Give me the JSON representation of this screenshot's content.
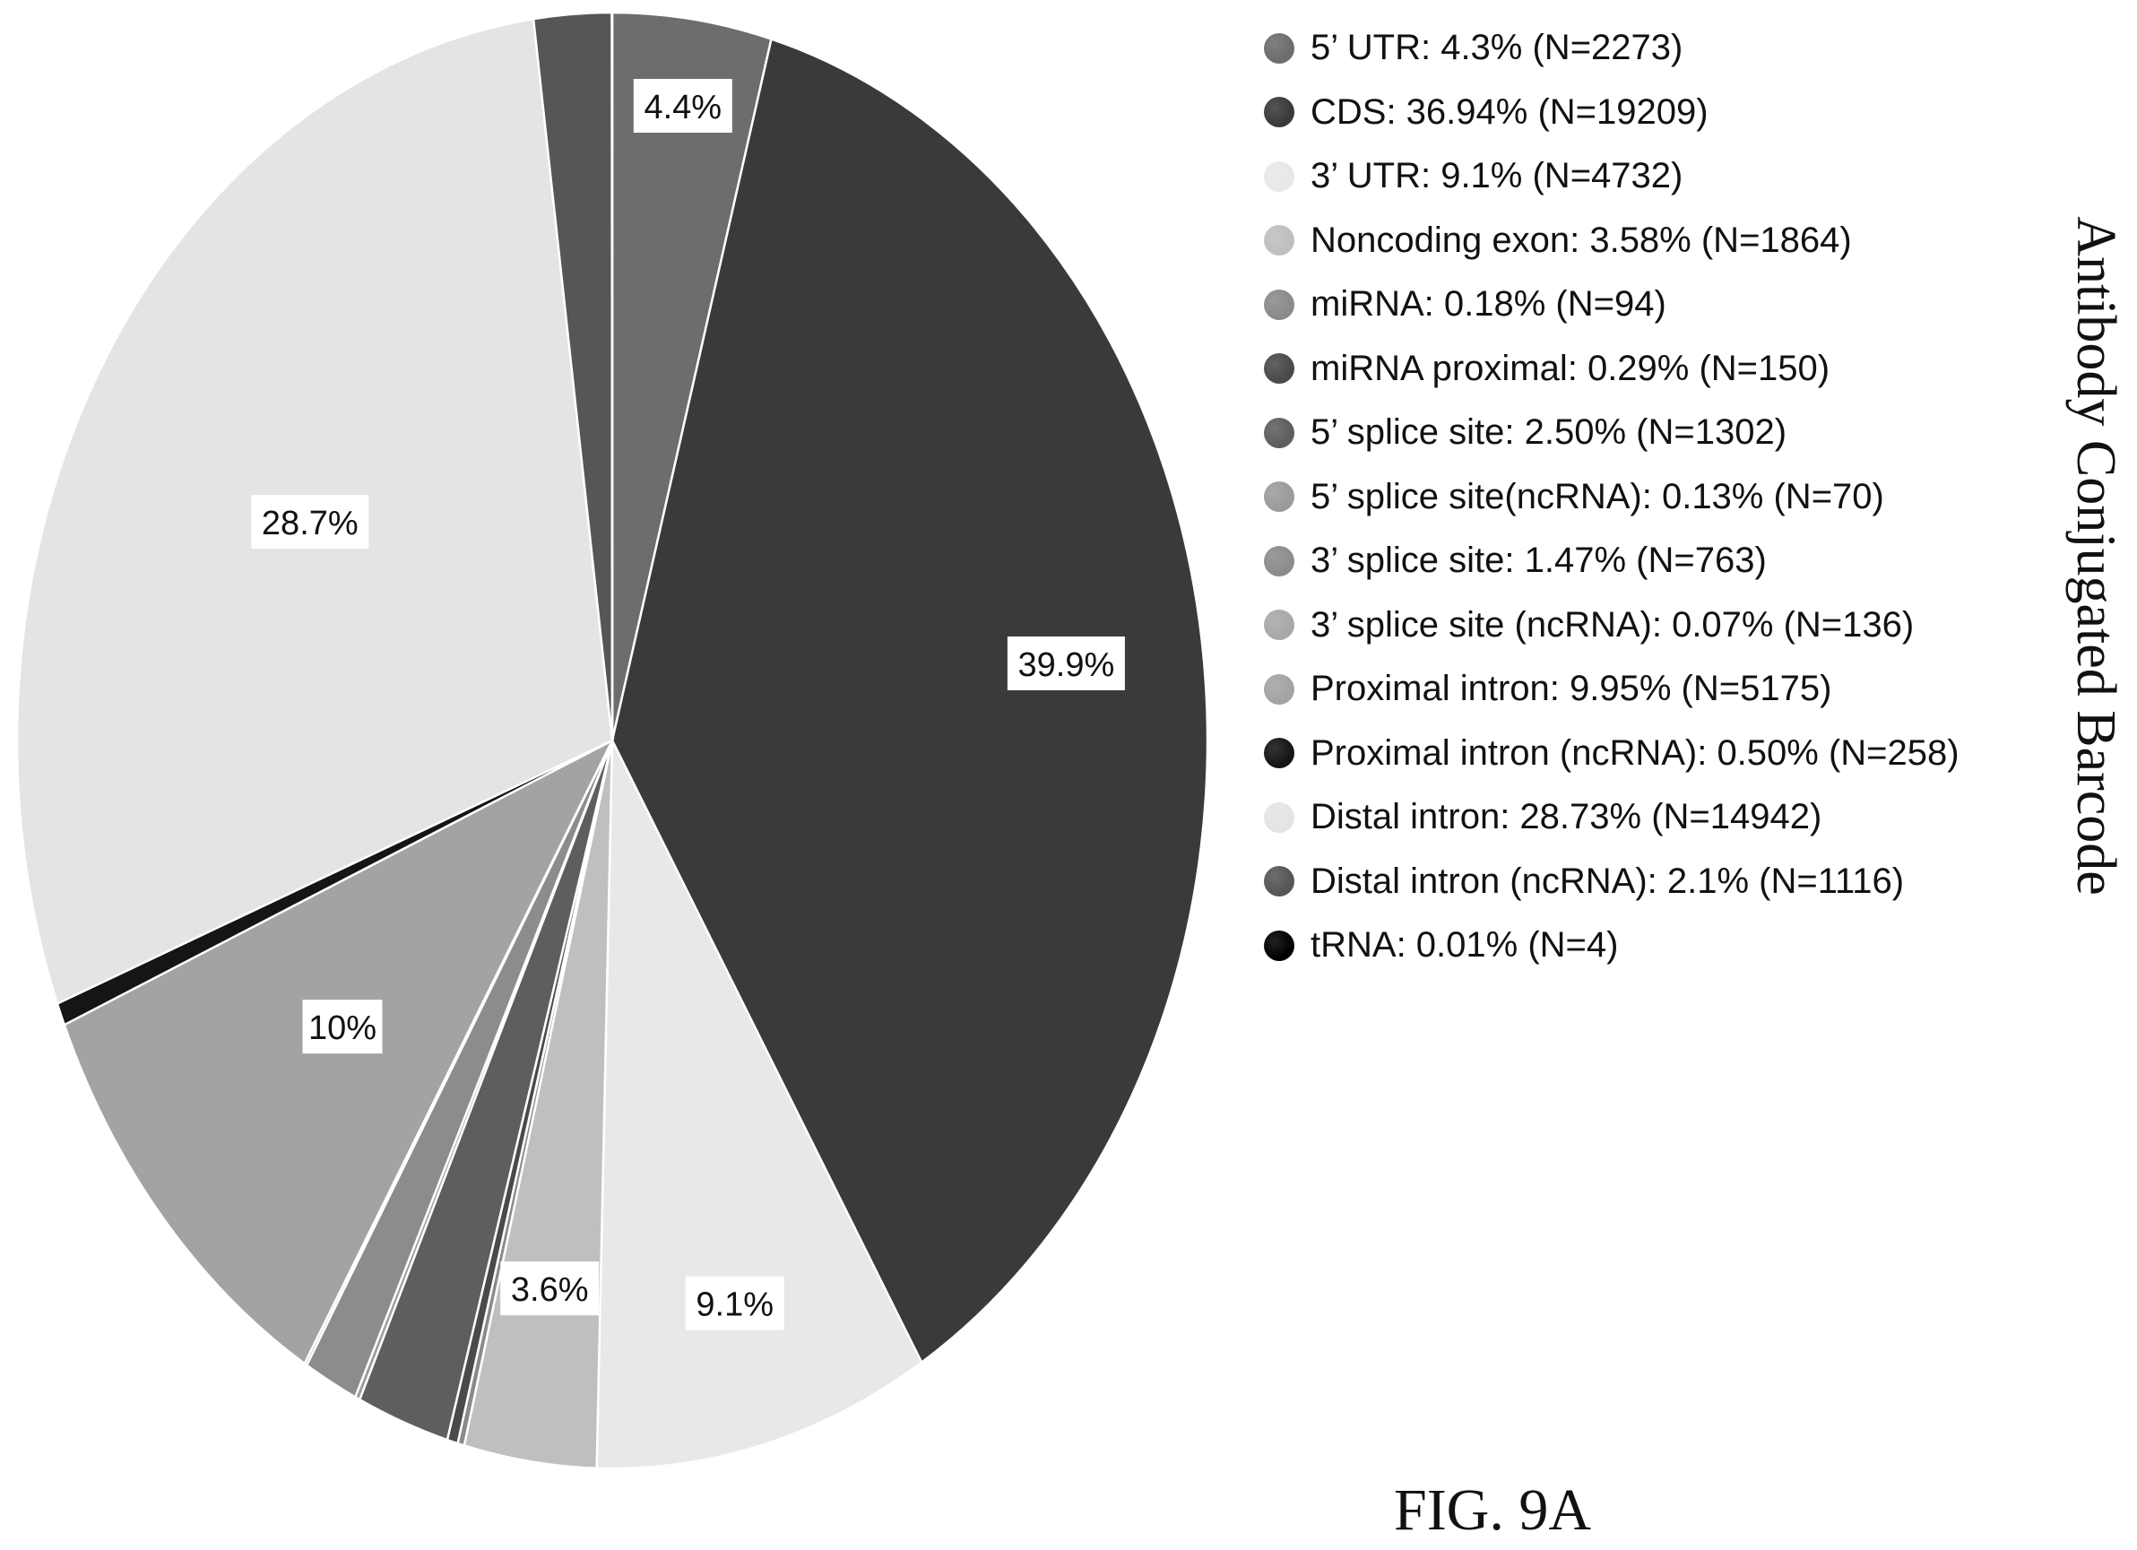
{
  "chart_data": {
    "type": "pie",
    "slices": [
      {
        "label": "5’ UTR: 4.3% (N=2273)",
        "value": 4.3,
        "color": "#6d6d6d"
      },
      {
        "label": "CDS: 36.94% (N=19209)",
        "value": 36.94,
        "color": "#3a3a3a"
      },
      {
        "label": "3’ UTR: 9.1% (N=4732)",
        "value": 9.1,
        "color": "#e8e8e8"
      },
      {
        "label": "Noncoding exon: 3.58% (N=1864)",
        "value": 3.58,
        "color": "#bfbfbf"
      },
      {
        "label": "miRNA: 0.18% (N=94)",
        "value": 0.18,
        "color": "#8a8a8a"
      },
      {
        "label": "miRNA proximal: 0.29% (N=150)",
        "value": 0.29,
        "color": "#4a4a4a"
      },
      {
        "label": "5’ splice site: 2.50% (N=1302)",
        "value": 2.5,
        "color": "#5e5e5e"
      },
      {
        "label": "5’ splice site(ncRNA): 0.13% (N=70)",
        "value": 0.13,
        "color": "#9b9b9b"
      },
      {
        "label": "3’ splice site: 1.47% (N=763)",
        "value": 1.47,
        "color": "#8c8c8c"
      },
      {
        "label": "3’ splice site (ncRNA): 0.07% (N=136)",
        "value": 0.07,
        "color": "#a8a8a8"
      },
      {
        "label": "Proximal intron: 9.95% (N=5175)",
        "value": 9.95,
        "color": "#a3a3a3"
      },
      {
        "label": "Proximal intron (ncRNA): 0.50% (N=258)",
        "value": 0.5,
        "color": "#151515"
      },
      {
        "label": "Distal intron: 28.73% (N=14942)",
        "value": 28.73,
        "color": "#e4e4e4"
      },
      {
        "label": "Distal intron (ncRNA): 2.1% (N=1116)",
        "value": 2.1,
        "color": "#565656"
      },
      {
        "label": "tRNA: 0.01% (N=4)",
        "value": 0.01,
        "color": "#000000"
      }
    ],
    "data_labels": [
      {
        "text": "4.4%",
        "slice": 0
      },
      {
        "text": "39.9%",
        "slice": 1
      },
      {
        "text": "9.1%",
        "slice": 2
      },
      {
        "text": "3.6%",
        "slice": 3
      },
      {
        "text": "10%",
        "slice": 10
      },
      {
        "text": "28.7%",
        "slice": 12
      }
    ],
    "title": "Antibody Conjugated Barcode"
  },
  "caption": "FIG. 9A"
}
